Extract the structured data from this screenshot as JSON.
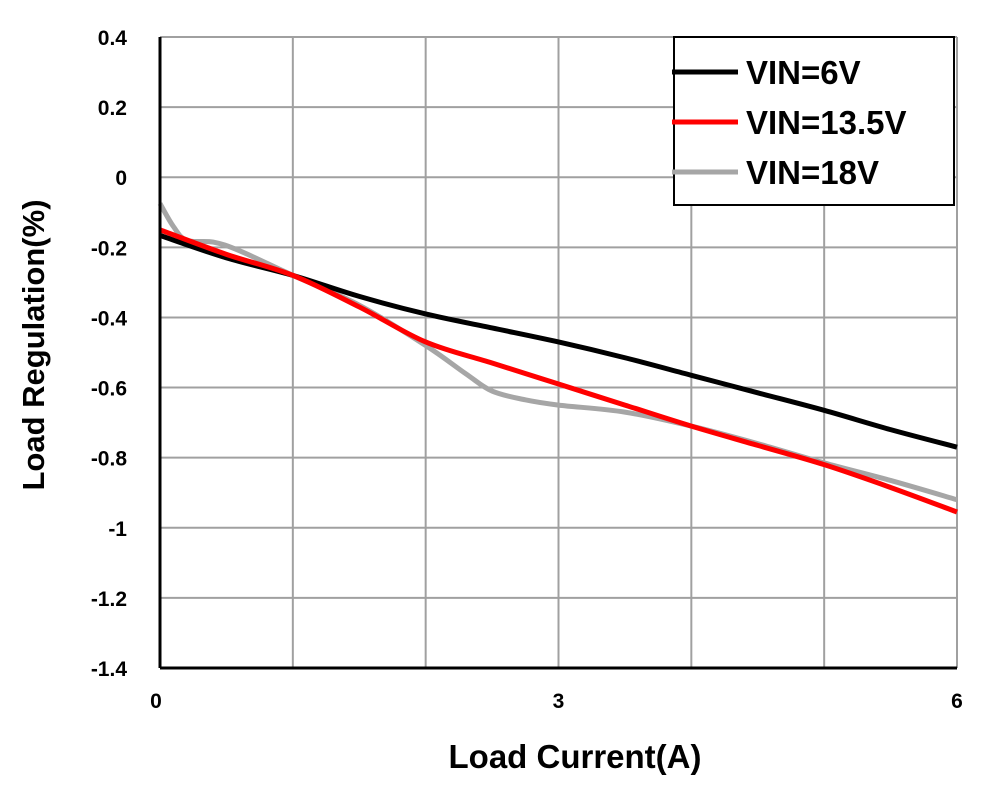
{
  "chart_data": {
    "type": "line",
    "title": "",
    "xlabel": "Load Current(A)",
    "ylabel": "Load Regulation(%)",
    "xlim": [
      0,
      6
    ],
    "ylim": [
      -1.4,
      0.4
    ],
    "x_ticks": [
      0,
      3,
      6
    ],
    "x_tick_labels": [
      "0",
      "3",
      "6"
    ],
    "x_grid": [
      0,
      1,
      2,
      3,
      4,
      5,
      6
    ],
    "y_ticks": [
      0.4,
      0.2,
      0,
      -0.2,
      -0.4,
      -0.6,
      -0.8,
      -1,
      -1.2,
      -1.4
    ],
    "y_tick_labels": [
      "0.4",
      "0.2",
      "0",
      "-0.2",
      "-0.4",
      "-0.6",
      "-0.8",
      "-1",
      "-1.2",
      "-1.4"
    ],
    "grid": true,
    "legend_position": "top-right",
    "series": [
      {
        "name": "VIN=6V",
        "color": "#000000",
        "x": [
          0,
          0.5,
          1,
          1.5,
          2,
          2.5,
          3,
          3.5,
          4,
          4.5,
          5,
          5.5,
          6
        ],
        "y": [
          -0.166,
          -0.23,
          -0.28,
          -0.34,
          -0.39,
          -0.43,
          -0.47,
          -0.515,
          -0.565,
          -0.615,
          -0.665,
          -0.72,
          -0.77
        ]
      },
      {
        "name": "VIN=13.5V",
        "color": "#ff0000",
        "x": [
          0,
          0.5,
          1,
          1.5,
          2,
          2.5,
          3,
          3.5,
          4,
          4.5,
          5,
          5.5,
          6
        ],
        "y": [
          -0.15,
          -0.22,
          -0.28,
          -0.37,
          -0.47,
          -0.53,
          -0.59,
          -0.65,
          -0.71,
          -0.765,
          -0.82,
          -0.885,
          -0.955
        ]
      },
      {
        "name": "VIN=18V",
        "color": "#a6a6a6",
        "x": [
          0,
          0.1,
          0.2,
          0.4,
          0.6,
          1,
          1.5,
          2,
          2.3,
          2.5,
          2.75,
          3,
          3.5,
          4,
          4.5,
          5,
          5.5,
          6
        ],
        "y": [
          -0.075,
          -0.14,
          -0.18,
          -0.185,
          -0.21,
          -0.28,
          -0.365,
          -0.48,
          -0.56,
          -0.61,
          -0.635,
          -0.65,
          -0.67,
          -0.71,
          -0.76,
          -0.815,
          -0.865,
          -0.92
        ]
      }
    ]
  }
}
